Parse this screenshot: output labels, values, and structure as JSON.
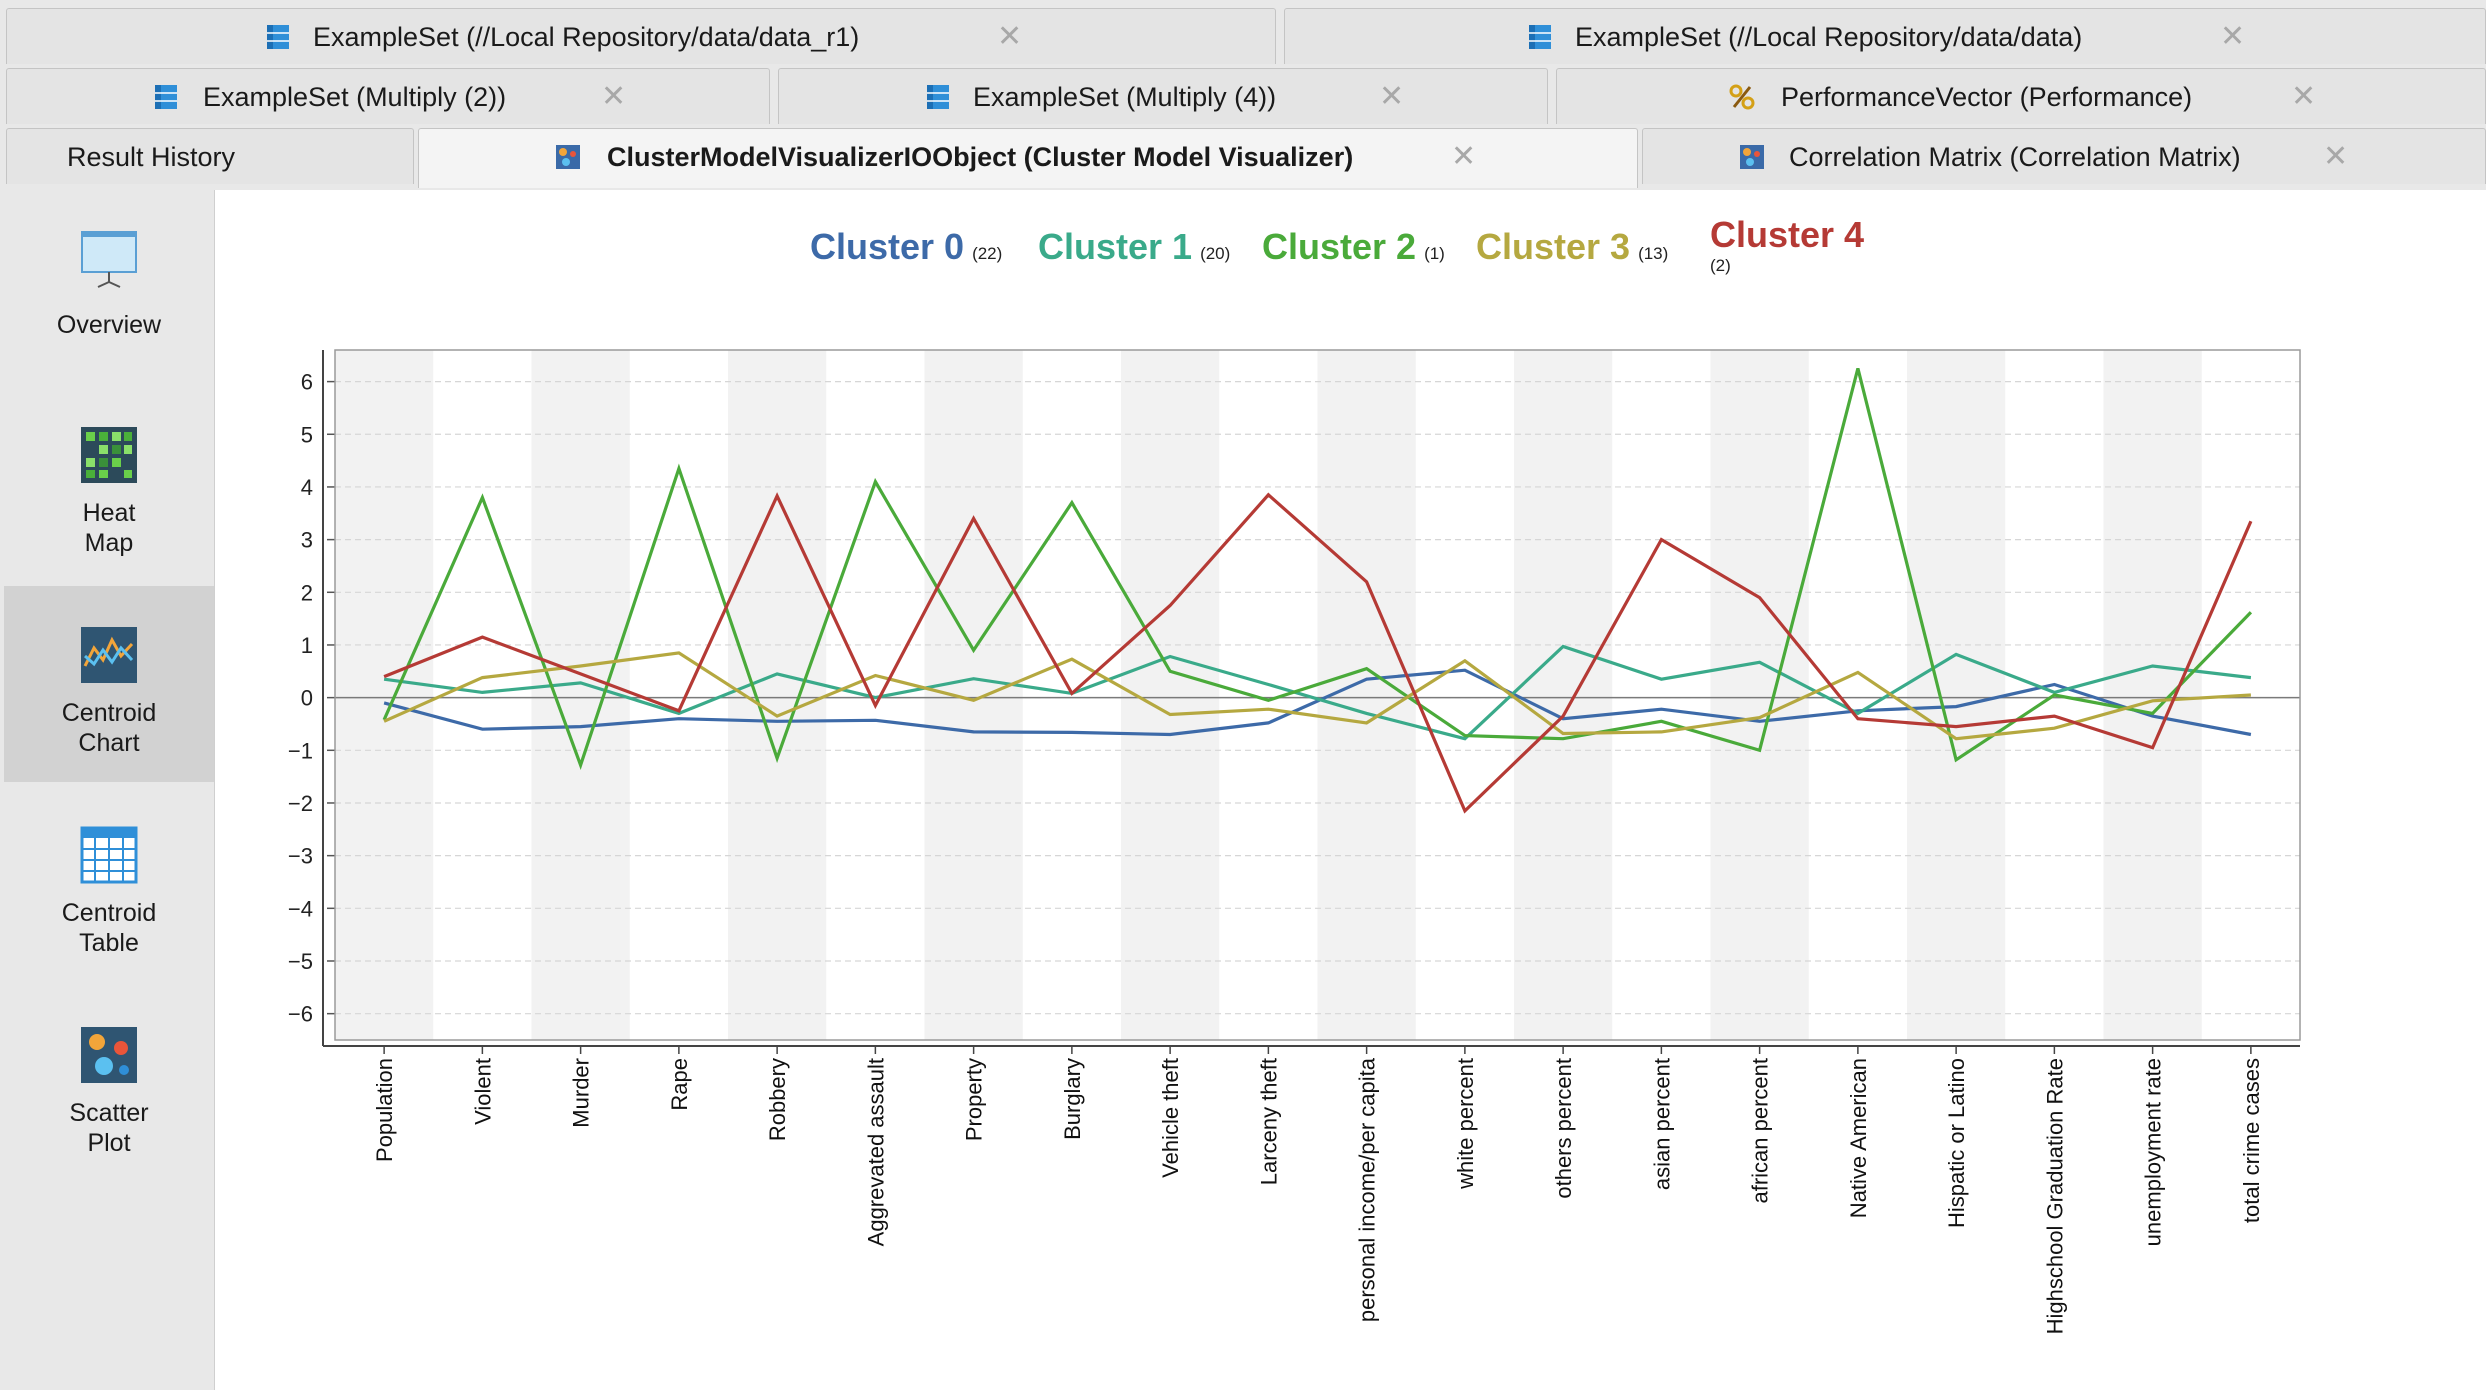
{
  "tabs": {
    "row1": [
      {
        "label": "ExampleSet (//Local Repository/data/data_r1)",
        "icon": "exampleset-icon"
      },
      {
        "label": "ExampleSet (//Local Repository/data/data)",
        "icon": "exampleset-icon"
      }
    ],
    "row2": [
      {
        "label": "ExampleSet (Multiply (2))",
        "icon": "exampleset-icon"
      },
      {
        "label": "ExampleSet (Multiply (4))",
        "icon": "exampleset-icon"
      },
      {
        "label": "PerformanceVector (Performance)",
        "icon": "performance-icon"
      }
    ],
    "row3": [
      {
        "label": "Result History"
      },
      {
        "label": "ClusterModelVisualizerIOObject (Cluster Model Visualizer)",
        "icon": "cluster-model-icon",
        "active": true
      },
      {
        "label": "Correlation Matrix (Correlation Matrix)",
        "icon": "correlation-matrix-icon"
      }
    ],
    "close_glyph": "✕"
  },
  "sidebar": {
    "items": [
      {
        "label": "Overview",
        "icon": "overview-icon"
      },
      {
        "label": "Heat\nMap",
        "icon": "heat-map-icon"
      },
      {
        "label": "Centroid\nChart",
        "icon": "centroid-chart-icon",
        "active": true
      },
      {
        "label": "Centroid\nTable",
        "icon": "centroid-table-icon"
      },
      {
        "label": "Scatter\nPlot",
        "icon": "scatter-plot-icon"
      }
    ]
  },
  "legend": [
    {
      "name": "Cluster 0",
      "count": "(22)",
      "color": "#3d6aa8"
    },
    {
      "name": "Cluster 1",
      "count": "(20)",
      "color": "#3aaa8a"
    },
    {
      "name": "Cluster 2",
      "count": "(1)",
      "color": "#4aaa3a"
    },
    {
      "name": "Cluster 3",
      "count": "(13)",
      "color": "#b5a840"
    },
    {
      "name": "Cluster 4",
      "count": "(2)",
      "color": "#b53a35"
    }
  ],
  "chart_data": {
    "type": "line",
    "title": "",
    "xlabel": "",
    "ylabel": "",
    "ylim": [
      -6.5,
      6.6
    ],
    "yticks": [
      6,
      5,
      4,
      3,
      2,
      1,
      0,
      -1,
      -2,
      -3,
      -4,
      -5,
      -6
    ],
    "grid": true,
    "legend_position": "top",
    "categories": [
      "Population",
      "Violent",
      "Murder",
      "Rape",
      "Robbery",
      "Aggrevated assault",
      "Property",
      "Burglary",
      "Vehicle theft",
      "Larceny theft",
      "personal income/per capita",
      "white percent",
      "others percent",
      "asian percent",
      "african percent",
      "Native American",
      "Hispatic or Latino",
      "Highschool Graduation Rate",
      "unemployment rate",
      "total crime cases"
    ],
    "series": [
      {
        "name": "Cluster 0",
        "color": "#3d6aa8",
        "values": [
          -0.1,
          -0.6,
          -0.55,
          -0.4,
          -0.45,
          -0.43,
          -0.65,
          -0.66,
          -0.7,
          -0.48,
          0.35,
          0.52,
          -0.4,
          -0.22,
          -0.45,
          -0.25,
          -0.17,
          0.25,
          -0.35,
          -0.7
        ]
      },
      {
        "name": "Cluster 1",
        "color": "#3aaa8a",
        "values": [
          0.35,
          0.1,
          0.28,
          -0.3,
          0.45,
          0.0,
          0.36,
          0.08,
          0.78,
          0.25,
          -0.3,
          -0.78,
          0.97,
          0.35,
          0.67,
          -0.3,
          0.82,
          0.1,
          0.6,
          0.38
        ]
      },
      {
        "name": "Cluster 2",
        "color": "#4aaa3a",
        "values": [
          -0.42,
          3.8,
          -1.28,
          4.35,
          -1.15,
          4.1,
          0.9,
          3.7,
          0.5,
          -0.05,
          0.55,
          -0.72,
          -0.78,
          -0.45,
          -1.0,
          6.25,
          -1.18,
          0.05,
          -0.3,
          1.62
        ]
      },
      {
        "name": "Cluster 3",
        "color": "#b5a840",
        "values": [
          -0.45,
          0.38,
          0.6,
          0.85,
          -0.35,
          0.42,
          -0.05,
          0.73,
          -0.32,
          -0.22,
          -0.48,
          0.7,
          -0.68,
          -0.65,
          -0.38,
          0.48,
          -0.78,
          -0.58,
          -0.06,
          0.05
        ]
      },
      {
        "name": "Cluster 4",
        "color": "#b53a35",
        "values": [
          0.4,
          1.15,
          0.45,
          -0.25,
          3.83,
          -0.15,
          3.4,
          0.08,
          1.75,
          3.85,
          2.2,
          -2.15,
          -0.35,
          3.0,
          1.9,
          -0.4,
          -0.55,
          -0.35,
          -0.95,
          3.35
        ]
      }
    ]
  }
}
